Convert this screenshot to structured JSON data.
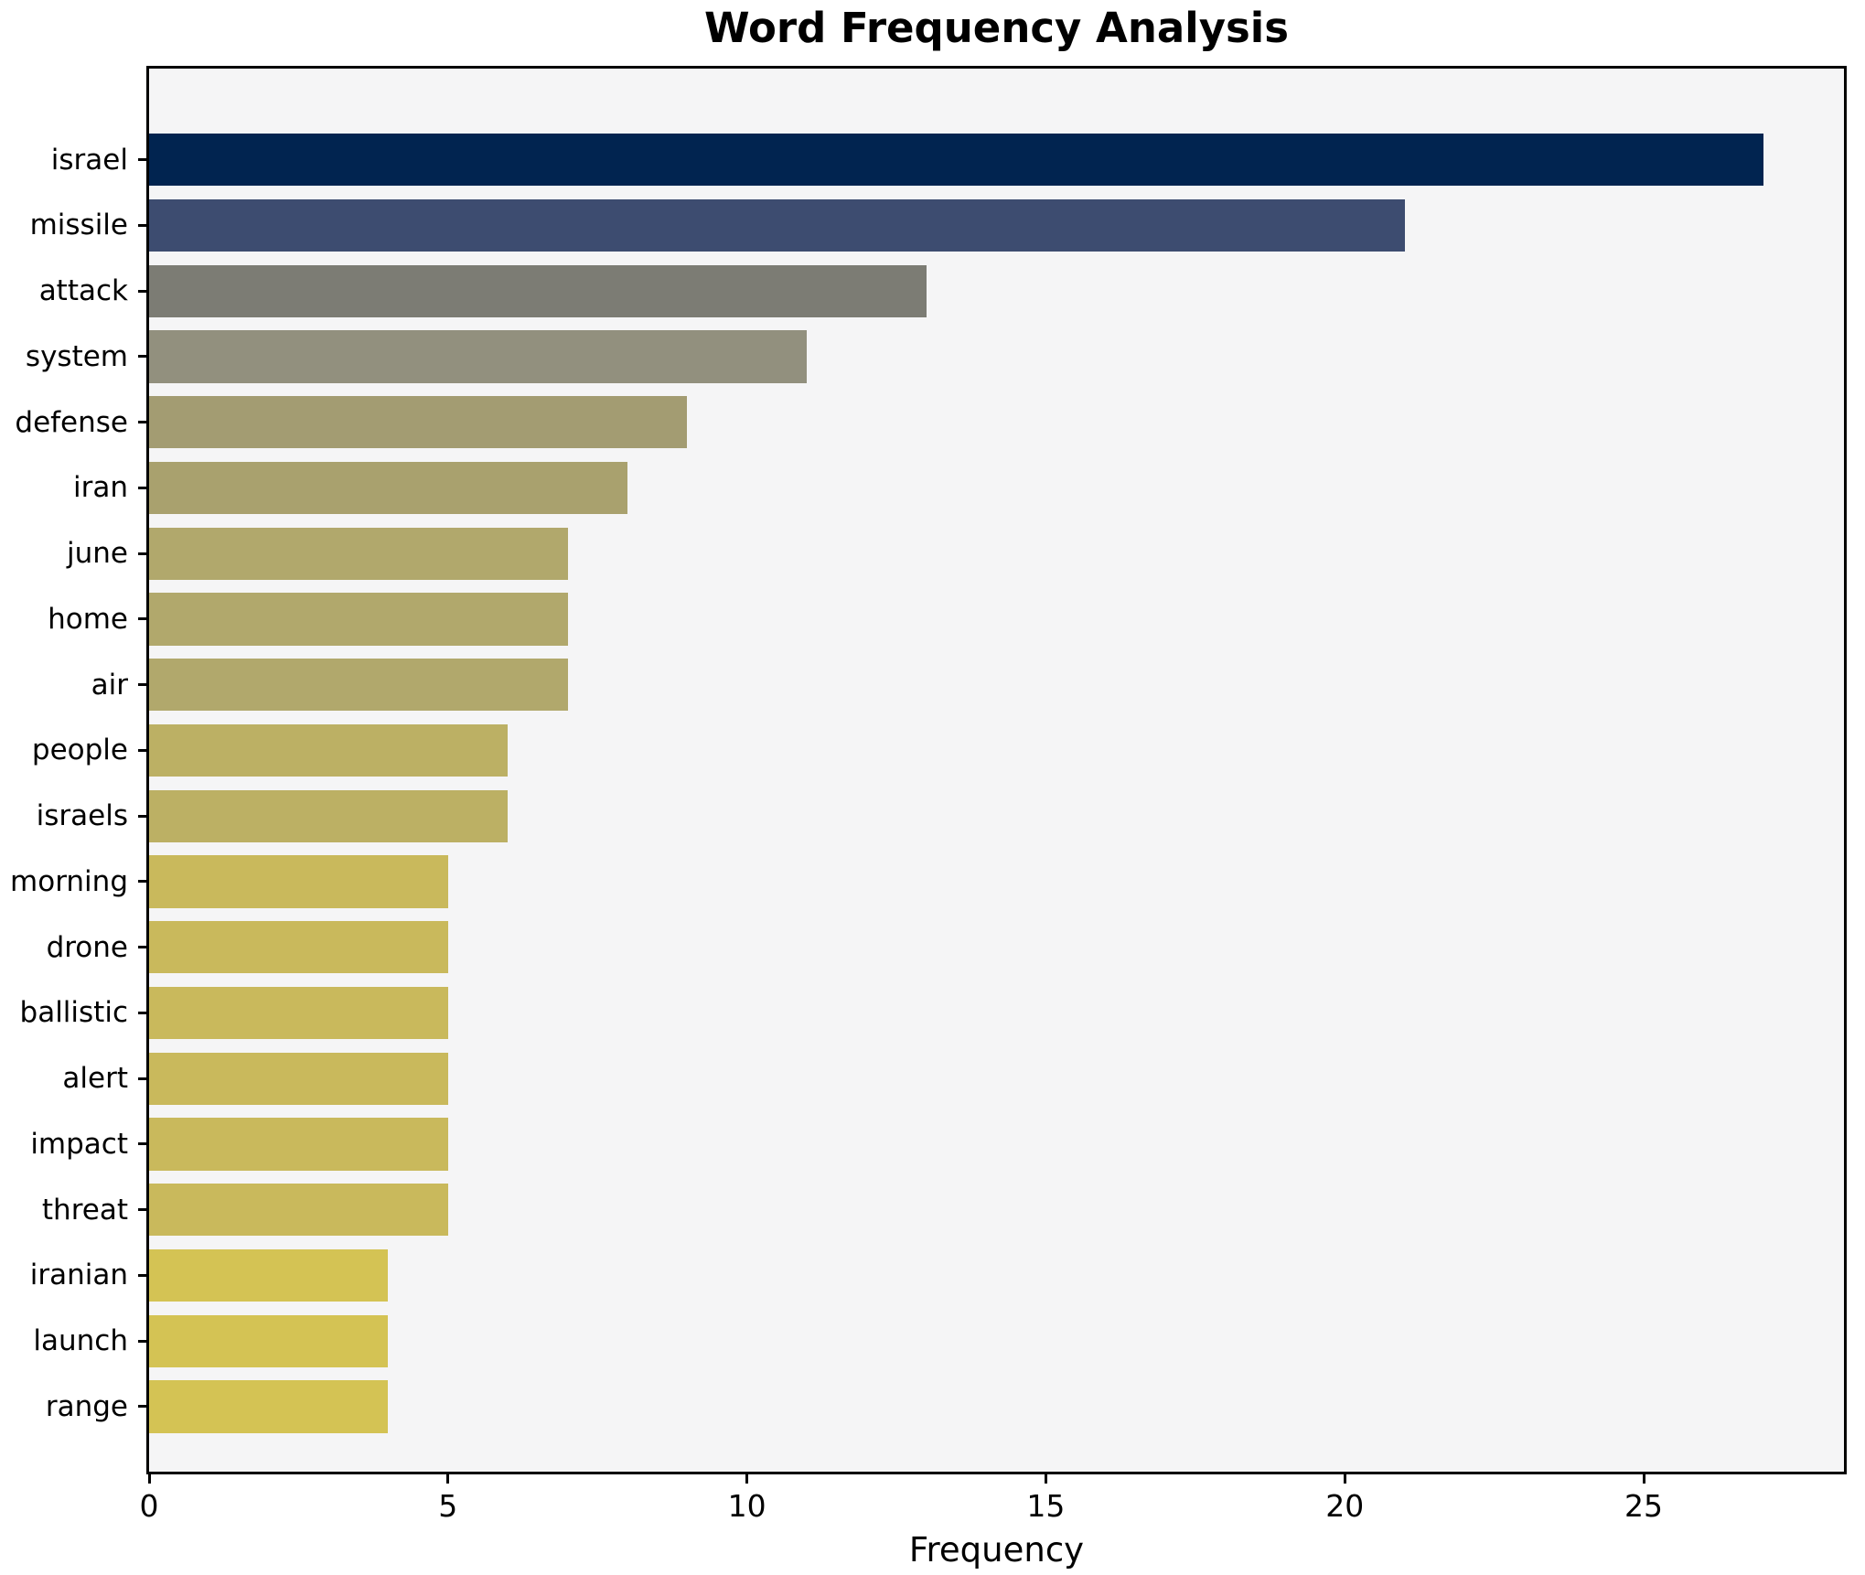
{
  "chart_data": {
    "type": "bar",
    "orientation": "horizontal",
    "title": "Word Frequency Analysis",
    "xlabel": "Frequency",
    "ylabel": "",
    "categories": [
      "israel",
      "missile",
      "attack",
      "system",
      "defense",
      "iran",
      "june",
      "home",
      "air",
      "people",
      "israels",
      "morning",
      "drone",
      "ballistic",
      "alert",
      "impact",
      "threat",
      "iranian",
      "launch",
      "range"
    ],
    "values": [
      27,
      21,
      13,
      11,
      9,
      8,
      7,
      7,
      7,
      6,
      6,
      5,
      5,
      5,
      5,
      5,
      5,
      4,
      4,
      4
    ],
    "bar_colors": [
      "#012450",
      "#3d4c70",
      "#7c7c74",
      "#92907e",
      "#a39c72",
      "#a9a16e",
      "#b1a86c",
      "#b1a86c",
      "#b1a86c",
      "#bcb064",
      "#bcb064",
      "#c9b95c",
      "#c9b95c",
      "#c9b95c",
      "#c9b95c",
      "#c9b95c",
      "#c9b95c",
      "#d4c354",
      "#d4c354",
      "#d4c354"
    ],
    "x_ticks": [
      "0",
      "5",
      "10",
      "15",
      "20",
      "25"
    ],
    "x_tick_values": [
      0,
      5,
      10,
      15,
      20,
      25
    ],
    "xlim": [
      0,
      28.35
    ],
    "grid": false,
    "legend": false,
    "plot_background": "#f5f5f6",
    "figure_background": "#ffffff",
    "spine_color": "#000000"
  }
}
